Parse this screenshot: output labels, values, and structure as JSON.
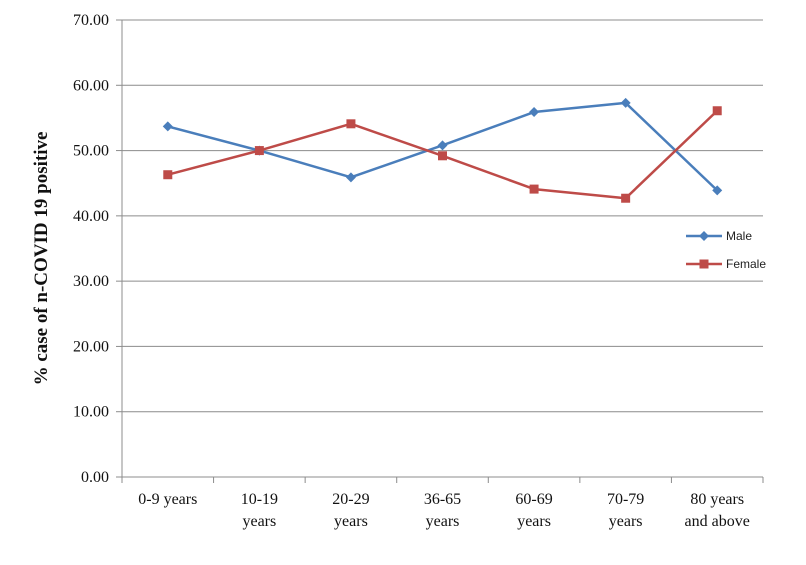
{
  "chart_data": {
    "type": "line",
    "title": "",
    "xlabel": "",
    "ylabel": "% case of n-COVID 19 positive",
    "ylim": [
      0,
      70
    ],
    "yticks": [
      "0.00",
      "10.00",
      "20.00",
      "30.00",
      "40.00",
      "50.00",
      "60.00",
      "70.00"
    ],
    "grid": true,
    "legend": "right",
    "categories": [
      [
        "0-9 years"
      ],
      [
        "10-19",
        "years"
      ],
      [
        "20-29",
        "years"
      ],
      [
        "36-65",
        "years"
      ],
      [
        "60-69",
        "years"
      ],
      [
        "70-79",
        "years"
      ],
      [
        "80 years",
        "and above"
      ]
    ],
    "series": [
      {
        "name": "Male",
        "color": "#4a7ebb",
        "marker": "diamond",
        "values": [
          53.7,
          50.0,
          45.9,
          50.8,
          55.9,
          57.3,
          43.9
        ]
      },
      {
        "name": "Female",
        "color": "#be4b48",
        "marker": "square",
        "values": [
          46.3,
          50.0,
          54.1,
          49.2,
          44.1,
          42.7,
          56.1
        ]
      }
    ]
  }
}
